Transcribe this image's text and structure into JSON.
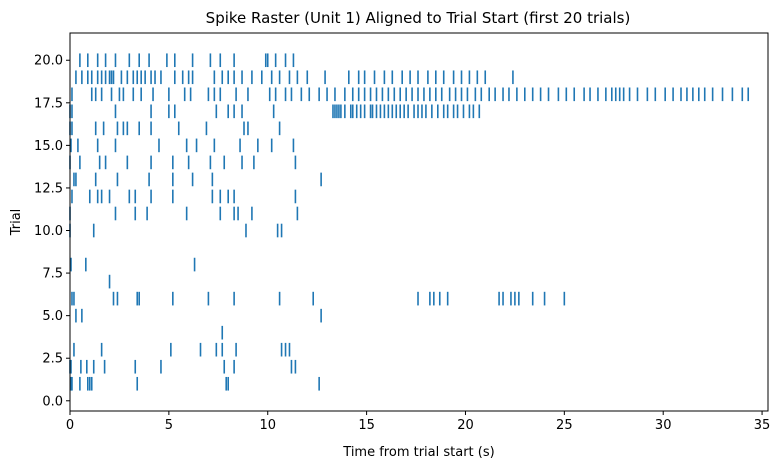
{
  "chart_data": {
    "type": "raster",
    "title": "Spike Raster (Unit 1) Aligned to Trial Start (first 20 trials)",
    "xlabel": "Time from trial start (s)",
    "ylabel": "Trial",
    "xlim": [
      0,
      35.3
    ],
    "ylim": [
      -0.6,
      21.6
    ],
    "xticks": [
      0,
      5,
      10,
      15,
      20,
      25,
      30,
      35
    ],
    "xtick_labels": [
      "0",
      "5",
      "10",
      "15",
      "20",
      "25",
      "30",
      "35"
    ],
    "yticks": [
      0.0,
      2.5,
      5.0,
      7.5,
      10.0,
      12.5,
      15.0,
      17.5,
      20.0
    ],
    "ytick_labels": [
      "0.0",
      "2.5",
      "5.0",
      "7.5",
      "10.0",
      "12.5",
      "15.0",
      "17.5",
      "20.0"
    ],
    "color": "#1f77b4",
    "trials": [
      {
        "trial": 1,
        "spikes": [
          0.05,
          0.1,
          0.5,
          0.9,
          1.0,
          1.1,
          3.4,
          7.9,
          8.0,
          12.6
        ]
      },
      {
        "trial": 2,
        "spikes": [
          0.0,
          0.05,
          0.55,
          0.85,
          1.2,
          1.75,
          3.3,
          4.6,
          7.8,
          8.3,
          11.2,
          11.4
        ]
      },
      {
        "trial": 3,
        "spikes": [
          0.2,
          1.6,
          5.1,
          6.6,
          7.4,
          7.7,
          8.4,
          10.7,
          10.9,
          11.1
        ]
      },
      {
        "trial": 4,
        "spikes": [
          7.7
        ]
      },
      {
        "trial": 5,
        "spikes": [
          0.3,
          0.6,
          12.7
        ]
      },
      {
        "trial": 6,
        "spikes": [
          0.1,
          0.2,
          2.2,
          2.4,
          3.4,
          3.5,
          5.2,
          7.0,
          8.3,
          10.6,
          12.3,
          17.6,
          18.2,
          18.4,
          18.7,
          19.1,
          21.7,
          21.9,
          22.3,
          22.5,
          22.7,
          23.4,
          24.0,
          25.0
        ]
      },
      {
        "trial": 7,
        "spikes": [
          2.0
        ]
      },
      {
        "trial": 8,
        "spikes": [
          0.05,
          0.8,
          6.3
        ]
      },
      {
        "trial": 9,
        "spikes": []
      },
      {
        "trial": 10,
        "spikes": [
          0.0,
          1.2,
          8.9,
          10.5,
          10.7
        ]
      },
      {
        "trial": 11,
        "spikes": [
          0.0,
          2.3,
          3.3,
          3.9,
          5.9,
          7.6,
          8.3,
          8.5,
          9.2,
          11.5
        ]
      },
      {
        "trial": 12,
        "spikes": [
          0.1,
          1.0,
          1.4,
          1.6,
          2.0,
          3.0,
          3.3,
          4.1,
          5.2,
          7.2,
          7.6,
          8.0,
          8.3,
          11.4
        ]
      },
      {
        "trial": 13,
        "spikes": [
          0.2,
          0.3,
          1.3,
          2.4,
          4.0,
          5.2,
          6.2,
          7.2,
          12.7
        ]
      },
      {
        "trial": 14,
        "spikes": [
          0.0,
          0.5,
          1.5,
          1.8,
          2.9,
          4.1,
          5.2,
          6.0,
          7.1,
          7.8,
          8.7,
          9.3,
          11.4
        ]
      },
      {
        "trial": 15,
        "spikes": [
          0.05,
          0.4,
          1.4,
          2.3,
          4.5,
          5.9,
          6.4,
          7.3,
          8.6,
          9.5,
          10.2,
          11.3
        ]
      },
      {
        "trial": 16,
        "spikes": [
          0.0,
          0.1,
          1.3,
          1.7,
          2.4,
          2.7,
          2.9,
          3.5,
          4.1,
          5.5,
          6.9,
          8.8,
          9.0,
          10.6
        ]
      },
      {
        "trial": 17,
        "spikes": [
          0.0,
          0.1,
          2.3,
          4.1,
          5.0,
          5.3,
          7.4,
          8.0,
          8.3,
          8.7,
          10.3,
          13.3,
          13.4,
          13.5,
          13.6,
          13.7,
          13.9,
          14.2,
          14.3,
          14.5,
          14.7,
          14.9,
          15.2,
          15.3,
          15.5,
          15.7,
          15.9,
          16.1,
          16.3,
          16.5,
          16.7,
          16.9,
          17.1,
          17.4,
          17.6,
          17.8,
          18.0,
          18.3,
          18.6,
          18.9,
          19.1,
          19.4,
          19.6,
          19.9,
          20.2,
          20.4,
          20.7
        ]
      },
      {
        "trial": 18,
        "spikes": [
          0.1,
          1.1,
          1.3,
          1.6,
          2.1,
          2.5,
          2.7,
          3.2,
          3.6,
          4.2,
          5.0,
          5.8,
          6.1,
          7.0,
          7.3,
          7.6,
          8.4,
          9.0,
          10.1,
          10.4,
          10.9,
          11.2,
          11.7,
          12.1,
          12.6,
          13.0,
          13.4,
          13.9,
          14.3,
          14.6,
          14.9,
          15.2,
          15.5,
          15.8,
          16.1,
          16.4,
          16.7,
          17.0,
          17.3,
          17.6,
          17.9,
          18.2,
          18.5,
          18.8,
          19.2,
          19.5,
          19.8,
          20.1,
          20.5,
          20.8,
          21.2,
          21.5,
          21.9,
          22.2,
          22.6,
          23.0,
          23.4,
          23.8,
          24.2,
          24.7,
          25.1,
          25.5,
          26.0,
          26.3,
          26.7,
          27.1,
          27.4,
          27.6,
          27.8,
          28.0,
          28.3,
          28.7,
          29.2,
          29.6,
          30.1,
          30.5,
          30.9,
          31.2,
          31.5,
          31.8,
          32.1,
          32.5,
          33.0,
          33.5,
          34.0,
          34.3
        ]
      },
      {
        "trial": 19,
        "spikes": [
          0.3,
          0.6,
          0.9,
          1.1,
          1.4,
          1.6,
          1.8,
          2.0,
          2.1,
          2.2,
          2.6,
          2.9,
          3.2,
          3.4,
          3.6,
          3.8,
          4.1,
          4.3,
          4.6,
          5.3,
          5.7,
          6.0,
          6.2,
          7.3,
          7.7,
          8.0,
          8.3,
          8.7,
          9.2,
          9.7,
          10.2,
          10.6,
          11.1,
          11.5,
          12.0,
          12.9,
          14.1,
          14.6,
          14.9,
          15.4,
          15.9,
          16.3,
          16.8,
          17.2,
          17.6,
          18.1,
          18.5,
          18.9,
          19.4,
          19.8,
          20.2,
          20.6,
          21.0,
          22.4
        ]
      },
      {
        "trial": 20,
        "spikes": [
          0.5,
          0.9,
          1.4,
          1.8,
          2.3,
          3.0,
          3.5,
          4.0,
          4.9,
          5.3,
          6.2,
          7.1,
          7.6,
          8.3,
          9.9,
          10.0,
          10.4,
          10.9,
          11.3
        ]
      }
    ]
  }
}
